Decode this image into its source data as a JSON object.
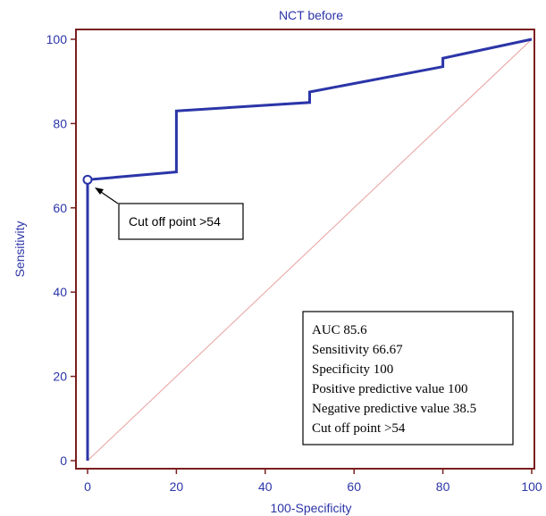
{
  "chart_data": {
    "type": "line",
    "title": "NCT before",
    "xlabel": "100-Specificity",
    "ylabel": "Sensitivity",
    "xlim": [
      0,
      100
    ],
    "ylim": [
      0,
      100
    ],
    "xticks": [
      0,
      20,
      40,
      60,
      80,
      100
    ],
    "yticks": [
      0,
      20,
      40,
      60,
      80,
      100
    ],
    "grid": false,
    "series": [
      {
        "name": "",
        "color": "#2b35a8",
        "x": [
          0,
          0,
          0,
          20,
          20,
          50,
          50,
          80,
          80,
          100
        ],
        "y": [
          0,
          66.67,
          66.67,
          68.5,
          83,
          85,
          87.5,
          93.5,
          95.5,
          100
        ]
      }
    ],
    "reference_line": {
      "x": [
        0,
        100
      ],
      "y": [
        0,
        100
      ],
      "color": "#e8a0a0"
    },
    "cutoff_marker": {
      "x": 0,
      "y": 66.67
    },
    "annotation": "Cut off point >54",
    "stats": [
      "AUC 85.6",
      "Sensitivity 66.67",
      "Specificity 100",
      "Positive predictive value 100",
      "Negative predictive value 38.5",
      "Cut off point >54"
    ]
  }
}
